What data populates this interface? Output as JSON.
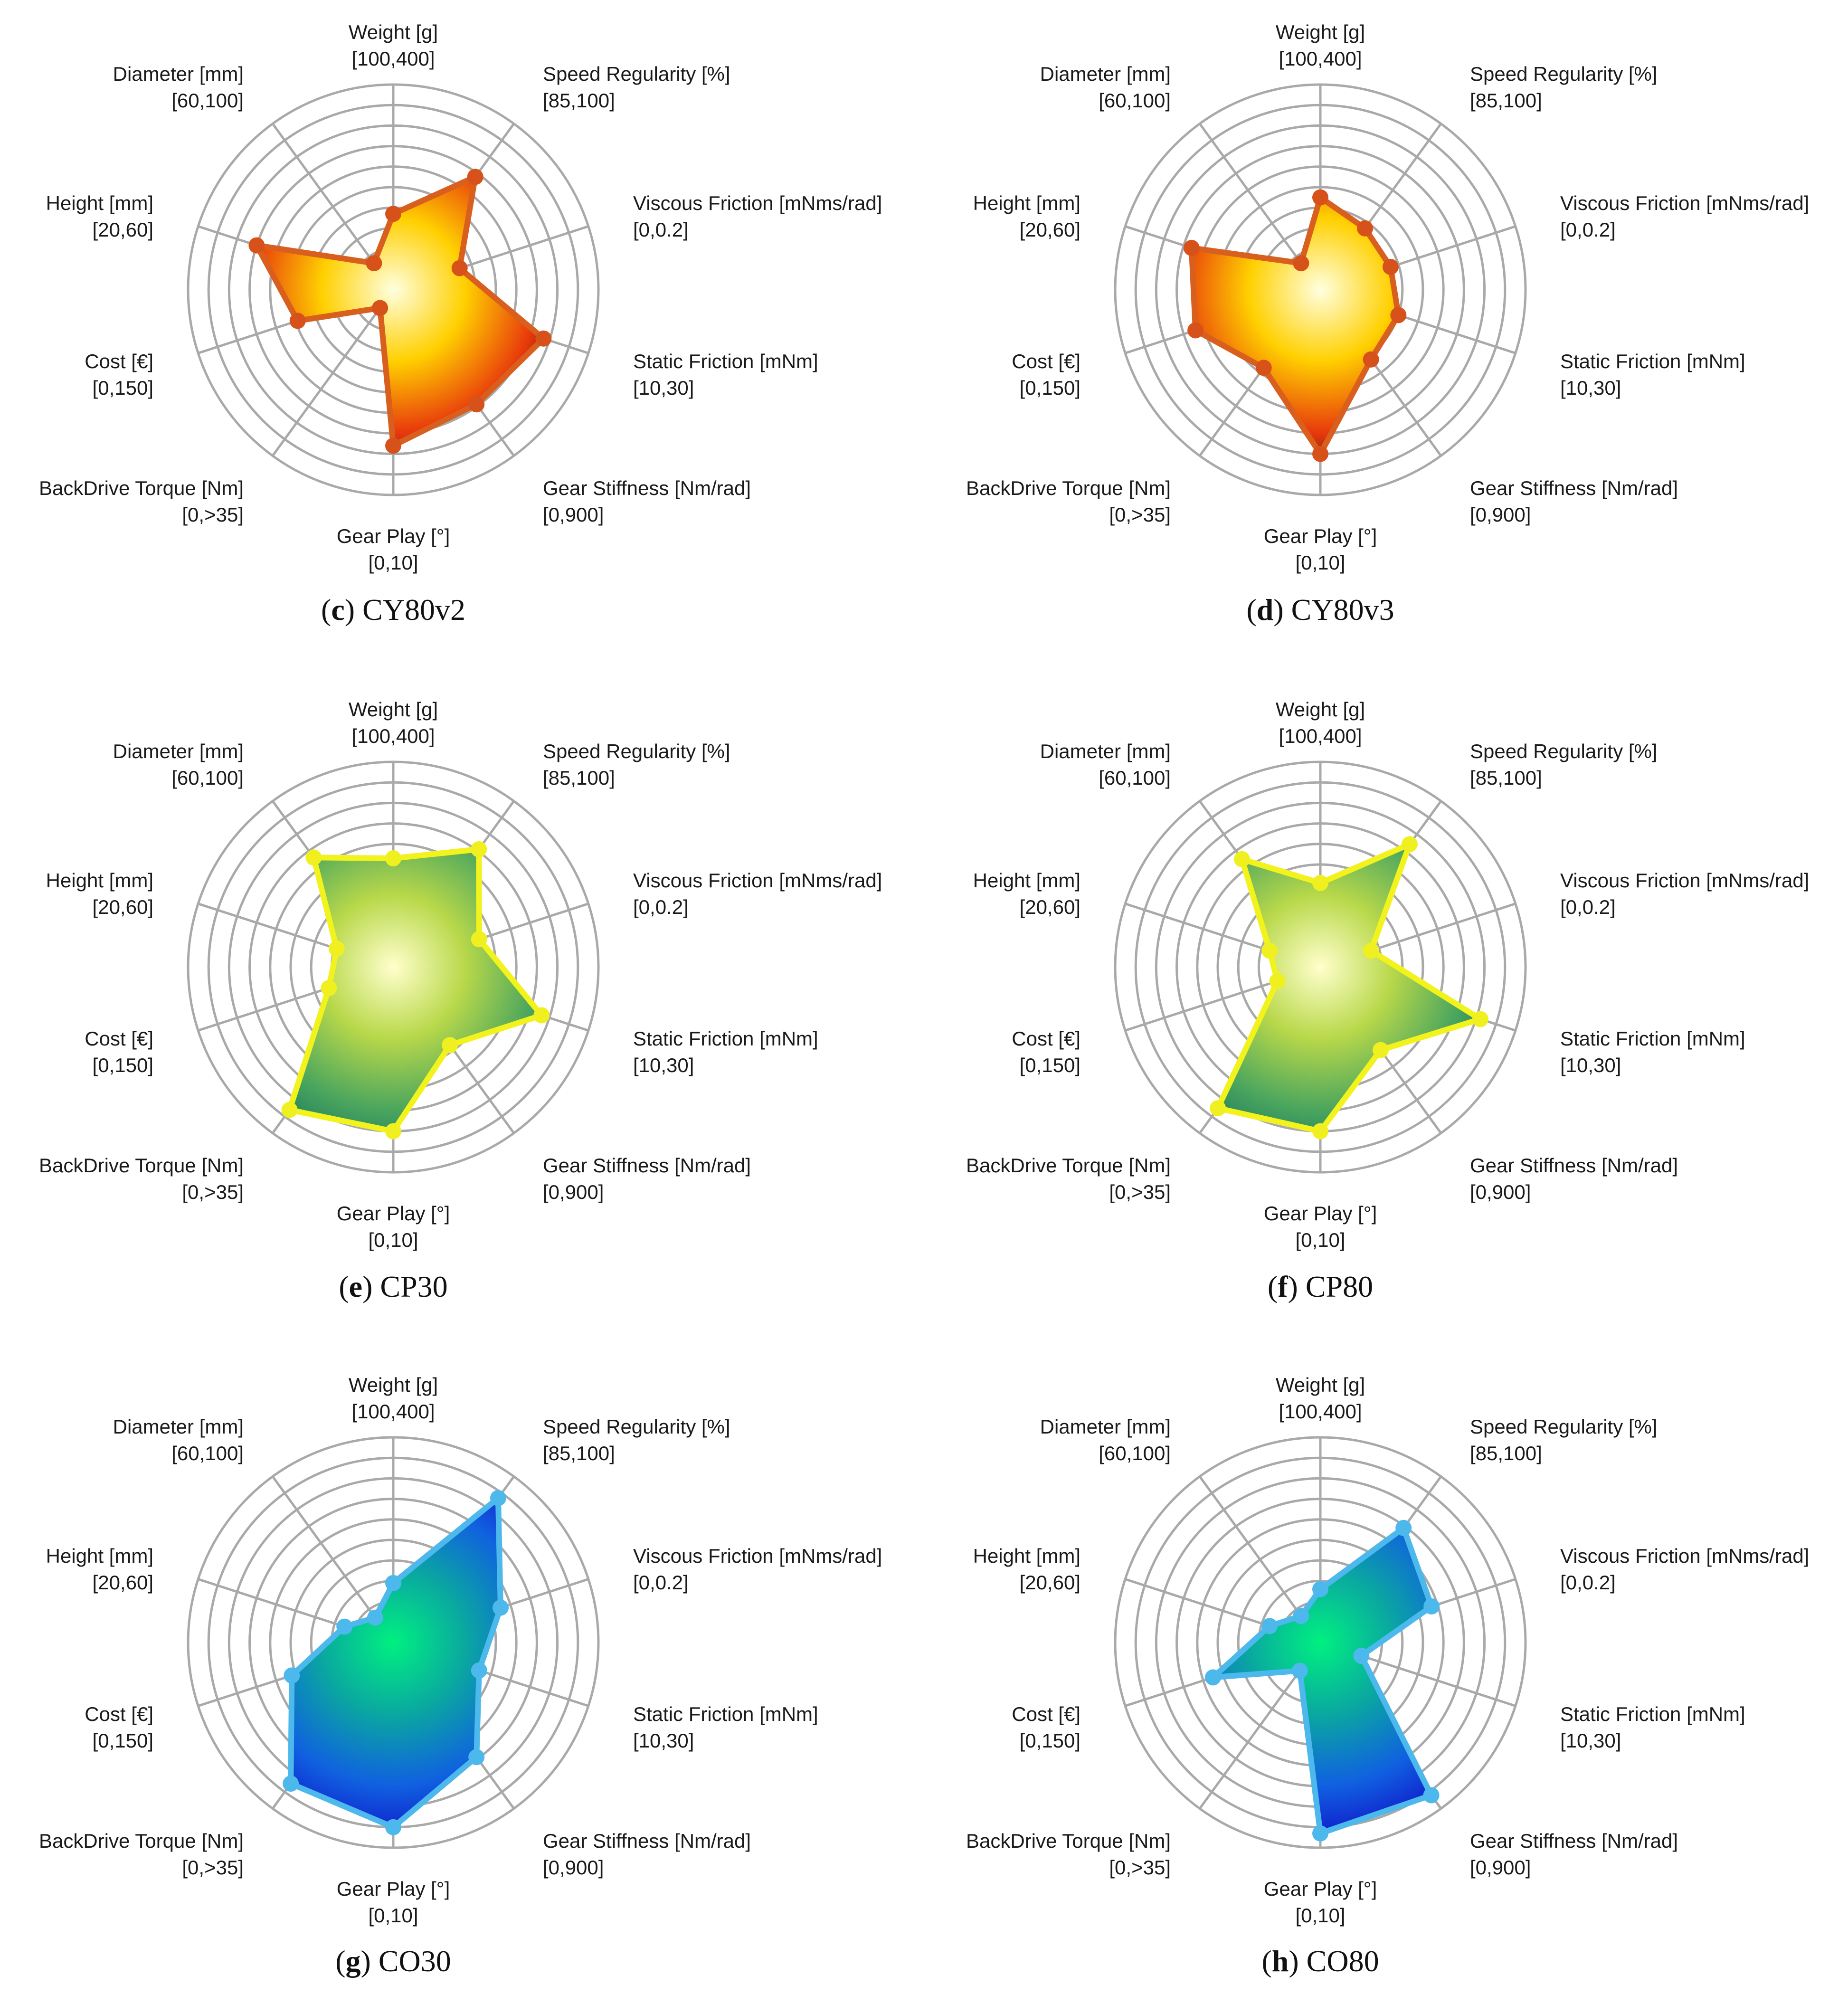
{
  "figure": {
    "axes": [
      {
        "name": "Weight [g]",
        "range": "[100,400]"
      },
      {
        "name": "Speed Regularity [%]",
        "range": "[85,100]"
      },
      {
        "name": "Viscous Friction [mNms/rad]",
        "range": "[0,0.2]"
      },
      {
        "name": "Static Friction [mNm]",
        "range": "[10,30]"
      },
      {
        "name": "Gear Stiffness [Nm/rad]",
        "range": "[0,900]"
      },
      {
        "name": "Gear Play [°]",
        "range": "[0,10]"
      },
      {
        "name": "BackDrive Torque [Nm]",
        "range": "[0,>35]"
      },
      {
        "name": "Cost [€]",
        "range": "[0,150]"
      },
      {
        "name": "Height [mm]",
        "range": "[20,60]"
      },
      {
        "name": "Diameter [mm]",
        "range": "[60,100]"
      }
    ],
    "ring_count": 10
  },
  "chart_data": [
    {
      "type": "radar",
      "caption_letter": "c",
      "caption_name": "CY80v2",
      "title": "(c) CY80v2",
      "scale": [
        0,
        1
      ],
      "values": [
        0.37,
        0.68,
        0.34,
        0.77,
        0.69,
        0.76,
        0.11,
        0.49,
        0.7,
        0.16
      ],
      "colors": {
        "stroke": "#d95f1e",
        "marker": "#d7521a",
        "fill_center": "#ffffe0",
        "fill_mid": "#ffd000",
        "fill_mid2": "#e8380c",
        "fill_edge": "#1a0a0a"
      }
    },
    {
      "type": "radar",
      "caption_letter": "d",
      "caption_name": "CY80v3",
      "title": "(d) CY80v3",
      "scale": [
        0,
        1
      ],
      "values": [
        0.45,
        0.37,
        0.36,
        0.4,
        0.42,
        0.8,
        0.47,
        0.64,
        0.66,
        0.16
      ],
      "colors": {
        "stroke": "#d95f1e",
        "marker": "#d7521a",
        "fill_center": "#ffffe0",
        "fill_mid": "#ffd000",
        "fill_mid2": "#e8380c",
        "fill_edge": "#1a0a0a"
      }
    },
    {
      "type": "radar",
      "caption_letter": "e",
      "caption_name": "CP30",
      "title": "(e) CP30",
      "scale": [
        0,
        1
      ],
      "values": [
        0.53,
        0.71,
        0.44,
        0.76,
        0.47,
        0.8,
        0.86,
        0.33,
        0.29,
        0.66
      ],
      "colors": {
        "stroke": "#f2f21c",
        "marker": "#f0f020",
        "fill_center": "#ffffcc",
        "fill_mid": "#b8d84a",
        "fill_mid2": "#4aa55e",
        "fill_edge": "#0e6e5c"
      }
    },
    {
      "type": "radar",
      "caption_letter": "f",
      "caption_name": "CP80",
      "title": "(f) CP80",
      "scale": [
        0,
        1
      ],
      "values": [
        0.41,
        0.74,
        0.26,
        0.82,
        0.5,
        0.8,
        0.85,
        0.22,
        0.26,
        0.65
      ],
      "colors": {
        "stroke": "#f2f21c",
        "marker": "#f0f020",
        "fill_center": "#ffffcc",
        "fill_mid": "#b8d84a",
        "fill_mid2": "#4aa55e",
        "fill_edge": "#0e6e5c"
      }
    },
    {
      "type": "radar",
      "caption_letter": "g",
      "caption_name": "CO30",
      "title": "(g) CO30",
      "scale": [
        0,
        1
      ],
      "values": [
        0.29,
        0.87,
        0.55,
        0.44,
        0.69,
        0.9,
        0.85,
        0.52,
        0.25,
        0.15
      ],
      "colors": {
        "stroke": "#4cb8ec",
        "marker": "#4cb8ec",
        "fill_center": "#00f080",
        "fill_mid": "#0aa8a0",
        "fill_mid2": "#1060e0",
        "fill_edge": "#1010c8"
      }
    },
    {
      "type": "radar",
      "caption_letter": "h",
      "caption_name": "CO80",
      "title": "(h) CO80",
      "scale": [
        0,
        1
      ],
      "values": [
        0.26,
        0.69,
        0.57,
        0.21,
        0.92,
        0.93,
        0.17,
        0.55,
        0.26,
        0.16
      ],
      "colors": {
        "stroke": "#4cb8ec",
        "marker": "#4cb8ec",
        "fill_center": "#00f080",
        "fill_mid": "#0aa8a0",
        "fill_mid2": "#1060e0",
        "fill_edge": "#1010c8"
      }
    }
  ]
}
